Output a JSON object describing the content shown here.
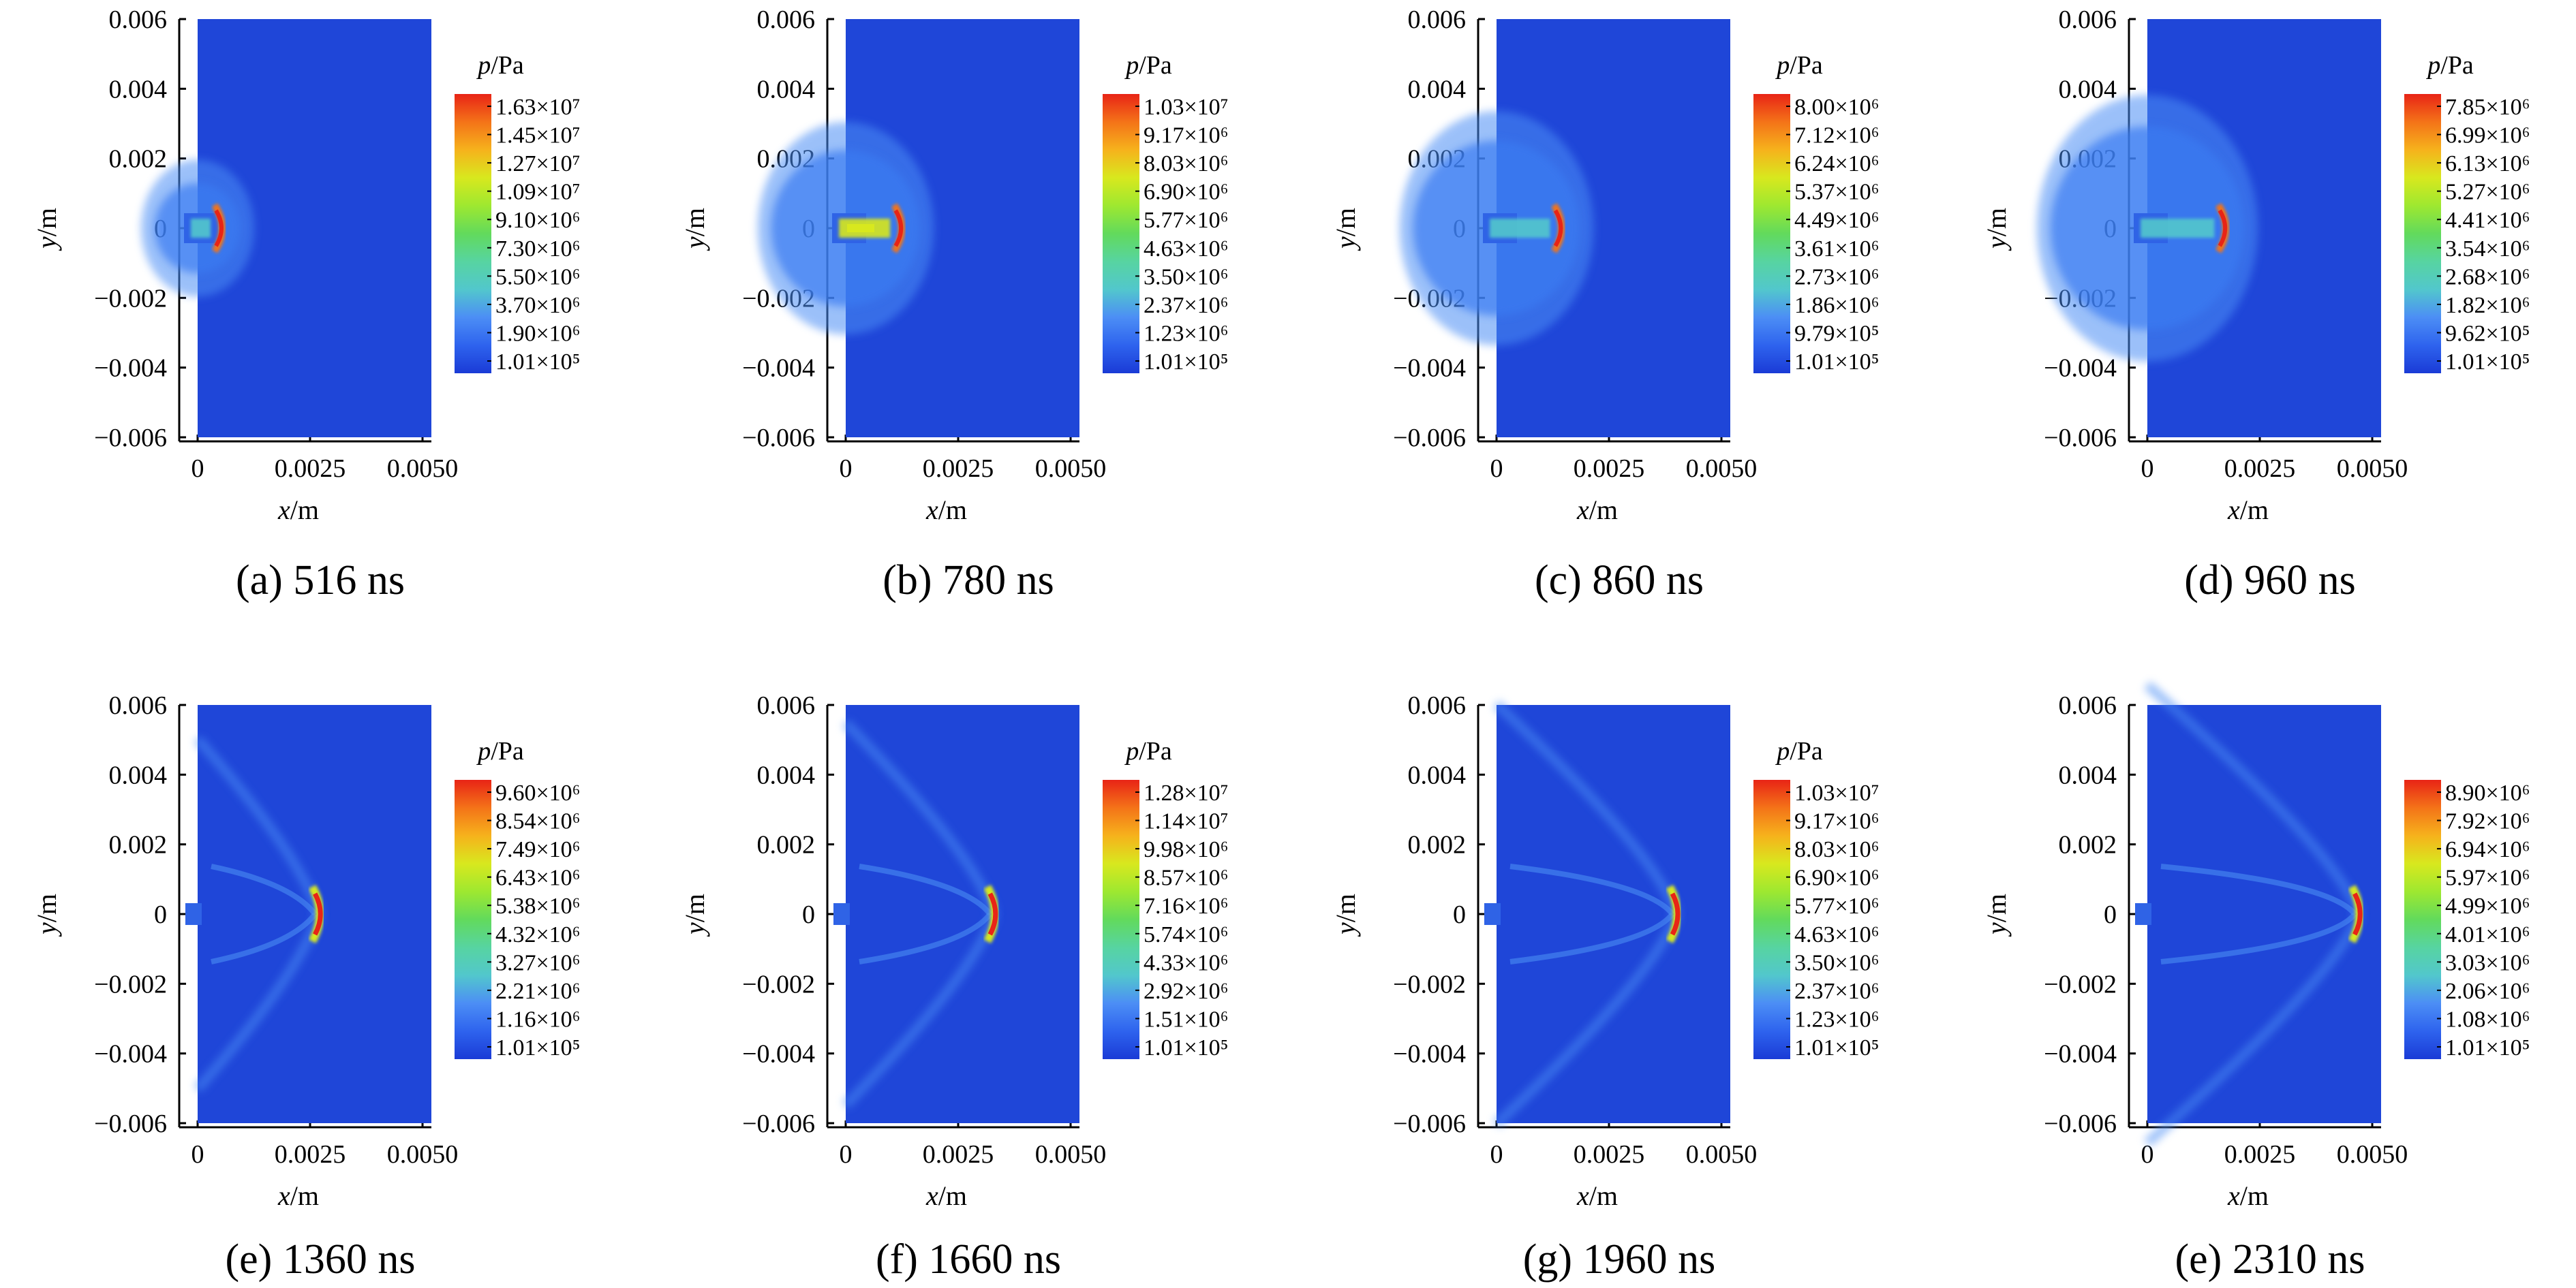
{
  "figure": {
    "colors": {
      "background_field": "#1f46d8",
      "scale": [
        "#1a3bd6",
        "#2e63ee",
        "#4c8ef5",
        "#52c7cc",
        "#57d4a1",
        "#62da5c",
        "#9ee830",
        "#d8e81e",
        "#f6b21c",
        "#f47318",
        "#e82416"
      ]
    },
    "axis_labels": {
      "x": "x/m",
      "y": "y/m"
    },
    "y_ticks": [
      "0.006",
      "0.004",
      "0.002",
      "0",
      "−0.002",
      "−0.004",
      "−0.006"
    ],
    "x_ticks": [
      "0",
      "0.0025",
      "0.0050"
    ],
    "colorbar_title": "p/Pa",
    "panels": [
      {
        "id": "a",
        "caption": "(a) 516 ns",
        "show_title": true,
        "colorbar_labels": [
          "1.63×10⁷",
          "1.45×10⁷",
          "1.27×10⁷",
          "1.09×10⁷",
          "9.10×10⁶",
          "7.30×10⁶",
          "5.50×10⁶",
          "3.70×10⁶",
          "1.90×10⁶",
          "1.01×10⁵"
        ]
      },
      {
        "id": "b",
        "caption": "(b) 780 ns",
        "show_title": true,
        "colorbar_labels": [
          "1.03×10⁷",
          "9.17×10⁶",
          "8.03×10⁶",
          "6.90×10⁶",
          "5.77×10⁶",
          "4.63×10⁶",
          "3.50×10⁶",
          "2.37×10⁶",
          "1.23×10⁶",
          "1.01×10⁵"
        ]
      },
      {
        "id": "c",
        "caption": "(c) 860 ns",
        "show_title": true,
        "colorbar_labels": [
          "8.00×10⁶",
          "7.12×10⁶",
          "6.24×10⁶",
          "5.37×10⁶",
          "4.49×10⁶",
          "3.61×10⁶",
          "2.73×10⁶",
          "1.86×10⁶",
          "9.79×10⁵",
          "1.01×10⁵"
        ]
      },
      {
        "id": "d",
        "caption": "(d) 960 ns",
        "show_title": true,
        "colorbar_labels": [
          "7.85×10⁶",
          "6.99×10⁶",
          "6.13×10⁶",
          "5.27×10⁶",
          "4.41×10⁶",
          "3.54×10⁶",
          "2.68×10⁶",
          "1.82×10⁶",
          "9.62×10⁵",
          "1.01×10⁵"
        ]
      },
      {
        "id": "e1",
        "caption": "(e) 1360 ns",
        "show_title": true,
        "colorbar_labels": [
          "9.60×10⁶",
          "8.54×10⁶",
          "7.49×10⁶",
          "6.43×10⁶",
          "5.38×10⁶",
          "4.32×10⁶",
          "3.27×10⁶",
          "2.21×10⁶",
          "1.16×10⁶",
          "1.01×10⁵"
        ]
      },
      {
        "id": "f",
        "caption": "(f) 1660 ns",
        "show_title": true,
        "colorbar_labels": [
          "1.28×10⁷",
          "1.14×10⁷",
          "9.98×10⁶",
          "8.57×10⁶",
          "7.16×10⁶",
          "5.74×10⁶",
          "4.33×10⁶",
          "2.92×10⁶",
          "1.51×10⁶",
          "1.01×10⁵"
        ]
      },
      {
        "id": "g",
        "caption": "(g) 1960 ns",
        "show_title": true,
        "colorbar_labels": [
          "1.03×10⁷",
          "9.17×10⁶",
          "8.03×10⁶",
          "6.90×10⁶",
          "5.77×10⁶",
          "4.63×10⁶",
          "3.50×10⁶",
          "2.37×10⁶",
          "1.23×10⁶",
          "1.01×10⁵"
        ]
      },
      {
        "id": "e2",
        "caption": "(e) 2310 ns",
        "show_title": false,
        "colorbar_labels": [
          "8.90×10⁶",
          "7.92×10⁶",
          "6.94×10⁶",
          "5.97×10⁶",
          "4.99×10⁶",
          "4.01×10⁶",
          "3.03×10⁶",
          "2.06×10⁶",
          "1.08×10⁶",
          "1.01×10⁵"
        ]
      }
    ]
  }
}
